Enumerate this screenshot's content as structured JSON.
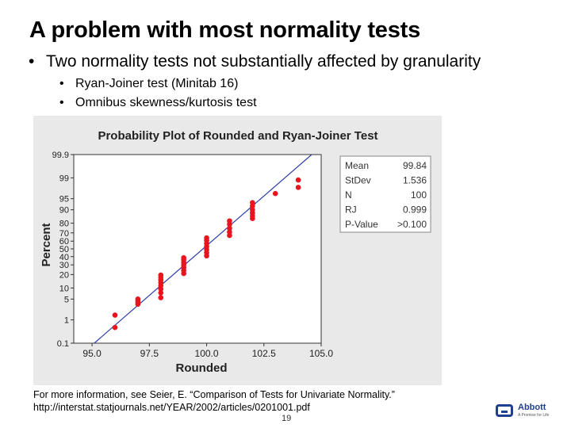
{
  "slide": {
    "title": "A problem with most normality tests",
    "bullet_main": "Two normality tests not substantially affected by granularity",
    "sub_bullets": [
      "Ryan-Joiner test (Minitab 16)",
      "Omnibus skewness/kurtosis test"
    ],
    "footnote_line1": "For more information, see Seier, E. “Comparison of Tests for Univariate Normality.”",
    "footnote_line2": "http://interstat.statjournals.net/YEAR/2002/articles/0201001.pdf",
    "page_number": "19",
    "logo_text": "Abbott",
    "logo_tagline": "A Promise for Life"
  },
  "chart_data": {
    "type": "scatter",
    "title": "Probability Plot of Rounded and Ryan-Joiner Test",
    "xlabel": "Rounded",
    "ylabel": "Percent",
    "x_ticks": [
      "95.0",
      "97.5",
      "100.0",
      "102.5",
      "105.0"
    ],
    "x_tick_values": [
      95.0,
      97.5,
      100.0,
      102.5,
      105.0
    ],
    "y_ticks": [
      "0.1",
      "1",
      "5",
      "10",
      "20",
      "30",
      "40",
      "50",
      "60",
      "70",
      "80",
      "90",
      "95",
      "99",
      "99.9"
    ],
    "y_tick_values": [
      0.1,
      1,
      5,
      10,
      20,
      30,
      40,
      50,
      60,
      70,
      80,
      90,
      95,
      99,
      99.9
    ],
    "xlim": [
      94.2,
      105.0
    ],
    "y_scale": "normal-probability",
    "fit_line": {
      "mean": 99.84,
      "sd": 1.536
    },
    "points": [
      {
        "x": 96,
        "y": [
          0.5,
          1.5
        ]
      },
      {
        "x": 97,
        "y": [
          3.5,
          4.0,
          4.5,
          5.0
        ]
      },
      {
        "x": 98,
        "y": [
          5.5,
          7.5,
          9.5,
          11.5,
          13.5,
          15.5,
          17.5,
          19.5
        ]
      },
      {
        "x": 99,
        "y": [
          21,
          24,
          27,
          30,
          33,
          36,
          38.5
        ]
      },
      {
        "x": 100,
        "y": [
          41,
          45,
          49,
          53,
          57,
          61,
          64
        ]
      },
      {
        "x": 101,
        "y": [
          67,
          71,
          75,
          79,
          82
        ]
      },
      {
        "x": 102,
        "y": [
          84,
          86,
          88,
          90,
          92,
          93.5
        ]
      },
      {
        "x": 103,
        "y": [
          96.5
        ]
      },
      {
        "x": 104,
        "y": [
          97.8,
          98.8
        ]
      }
    ],
    "stats": [
      {
        "label": "Mean",
        "value": "99.84"
      },
      {
        "label": "StDev",
        "value": "1.536"
      },
      {
        "label": "N",
        "value": "100"
      },
      {
        "label": "RJ",
        "value": "0.999"
      },
      {
        "label": "P-Value",
        "value": ">0.100"
      }
    ],
    "colors": {
      "points": "#e8141e",
      "line": "#2b3fa8",
      "panel_bg": "#e9e9e9",
      "plot_bg": "#ffffff"
    }
  }
}
